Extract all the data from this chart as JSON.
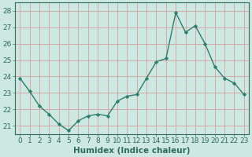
{
  "x": [
    0,
    1,
    2,
    3,
    4,
    5,
    6,
    7,
    8,
    9,
    10,
    11,
    12,
    13,
    14,
    15,
    16,
    17,
    18,
    19,
    20,
    21,
    22,
    23
  ],
  "y": [
    23.9,
    23.1,
    22.2,
    21.7,
    21.1,
    20.7,
    21.3,
    21.6,
    21.7,
    21.6,
    22.5,
    22.8,
    22.9,
    23.9,
    24.9,
    25.1,
    27.9,
    26.7,
    27.1,
    26.0,
    24.6,
    23.9,
    23.6,
    22.9
  ],
  "line_color": "#2e7d6e",
  "marker": "D",
  "marker_size": 2.2,
  "bg_color": "#cce8e0",
  "grid_color": "#d4a0a0",
  "tick_color": "#2e6b5e",
  "xlabel": "Humidex (Indice chaleur)",
  "ylim": [
    20.5,
    28.5
  ],
  "yticks": [
    21,
    22,
    23,
    24,
    25,
    26,
    27,
    28
  ],
  "xticks": [
    0,
    1,
    2,
    3,
    4,
    5,
    6,
    7,
    8,
    9,
    10,
    11,
    12,
    13,
    14,
    15,
    16,
    17,
    18,
    19,
    20,
    21,
    22,
    23
  ],
  "xlabel_fontsize": 7.5,
  "tick_fontsize": 6.5,
  "linewidth": 1.0
}
